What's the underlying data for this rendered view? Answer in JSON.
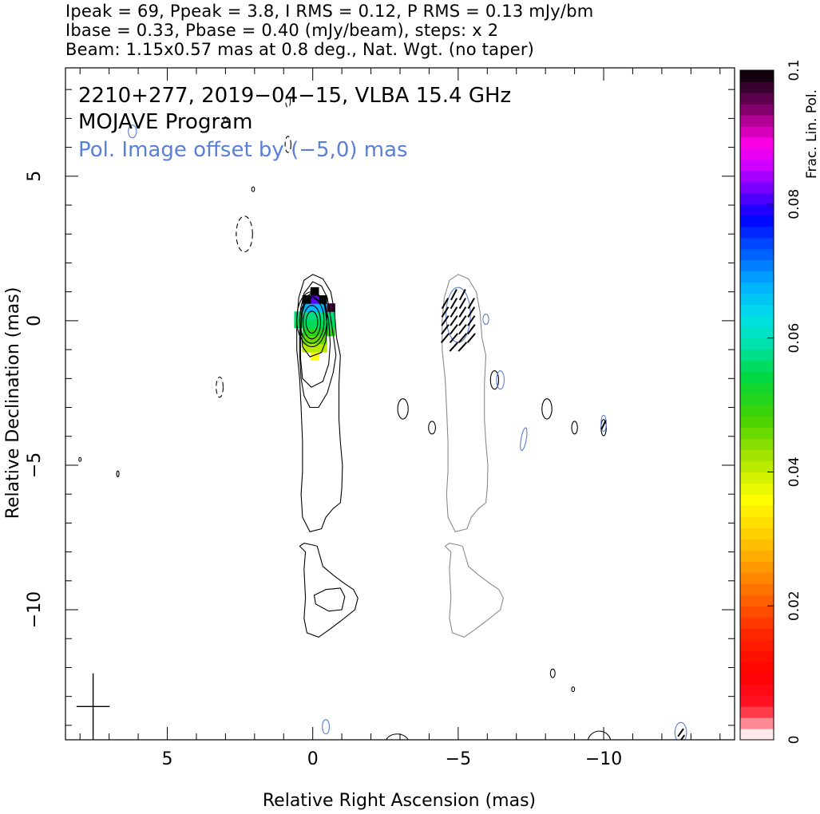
{
  "header": {
    "line1": "Ipeak = 69, Ppeak = 3.8, I RMS = 0.12, P RMS = 0.13 mJy/bm",
    "line2": "Ibase = 0.33, Pbase = 0.40 (mJy/beam), steps: x 2",
    "line3": "Beam: 1.15x0.57 mas at 0.8 deg., Nat. Wgt. (no taper)"
  },
  "chart_data": {
    "type": "heatmap",
    "annotations": {
      "source": "2210+277, 2019−04−15, VLBA 15.4 GHz",
      "program": "MOJAVE Program",
      "pol_offset": "Pol. Image offset by (−5,0) mas"
    },
    "xlabel": "Relative Right Ascension (mas)",
    "ylabel": "Relative Declination (mas)",
    "xlim": [
      8.5,
      -14.5
    ],
    "ylim": [
      -14.5,
      8.75
    ],
    "x_ticks": [
      5,
      0,
      -5,
      -10
    ],
    "x_tick_labels": [
      "5",
      "0",
      "−5",
      "−10"
    ],
    "y_ticks": [
      5,
      0,
      -5,
      -10
    ],
    "y_tick_labels": [
      "5",
      "0",
      "−5",
      "−10"
    ],
    "colorbar": {
      "label": "Frac. Lin. Pol.",
      "range": [
        0,
        0.1
      ],
      "ticks": [
        0,
        0.02,
        0.04,
        0.06,
        0.08,
        0.1
      ],
      "tick_labels": [
        "0",
        "0.02",
        "0.04",
        "0.06",
        "0.08",
        "0.1"
      ]
    },
    "intensity_peak_mJy_per_beam": 69,
    "pol_peak_mJy_per_beam": 3.8,
    "contour_base_mJy_per_beam": 0.33,
    "contour_step_factor": 2,
    "beam": {
      "major_mas": 1.15,
      "minor_mas": 0.57,
      "pa_deg": 0.8
    },
    "core_position_mas": [
      0,
      0
    ],
    "pol_image_offset_mas": [
      -5,
      0
    ],
    "colors": {
      "total_intensity_contours": "#000000",
      "pol_contours": "#5a7fd6",
      "pol_copy_intensity_contours": "#8a8a8a",
      "pol_offset_text": "#5a7fd6"
    }
  }
}
